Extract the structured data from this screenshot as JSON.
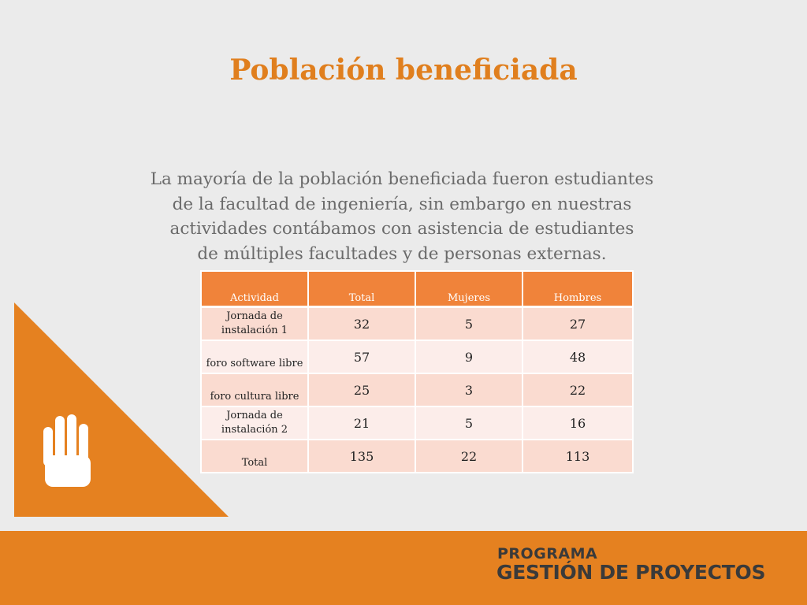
{
  "slide": {
    "title": "Población beneficiada",
    "paragraph_lines": [
      "La mayoría de la población beneficiada fueron estudiantes",
      "de la facultad de ingeniería, sin embargo en nuestras",
      "actividades contábamos con asistencia de estudiantes",
      "de múltiples facultades y de personas externas."
    ]
  },
  "table": {
    "headers": [
      "Actividad",
      "Total",
      "Mujeres",
      "Hombres"
    ],
    "rows": [
      {
        "actividad": "Jornada de instalación 1",
        "total": "32",
        "mujeres": "5",
        "hombres": "27"
      },
      {
        "actividad": "foro software libre",
        "total": "57",
        "mujeres": "9",
        "hombres": "48"
      },
      {
        "actividad": "foro cultura libre",
        "total": "25",
        "mujeres": "3",
        "hombres": "22"
      },
      {
        "actividad": "Jornada de instalación 2",
        "total": "21",
        "mujeres": "5",
        "hombres": "16"
      },
      {
        "actividad": "Total",
        "total": "135",
        "mujeres": "22",
        "hombres": "113"
      }
    ]
  },
  "footer": {
    "logo_line1": "PROGRAMA",
    "logo_line2": "GESTIÓN DE PROYECTOS"
  },
  "colors": {
    "accent": "#e58120",
    "title": "#e07f1e",
    "header_cell": "#f0833a",
    "row_odd": "#fadbd0",
    "row_even": "#fcedea",
    "background": "#ebebeb"
  },
  "icons": {
    "hand": "raised-hand-icon"
  }
}
